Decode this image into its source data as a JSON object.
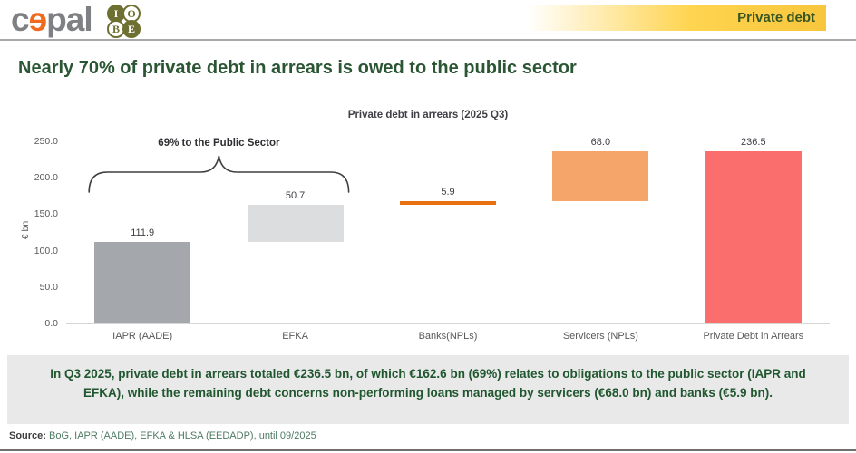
{
  "header": {
    "logo_cepal": {
      "c": "c",
      "e": "ɘ",
      "pal": "pal"
    },
    "logo_iobe": {
      "letters": [
        "I",
        "O",
        "B",
        "E"
      ]
    },
    "banner_label": "Private debt"
  },
  "title": "Nearly 70% of private debt in arrears is owed to the public sector",
  "chart_data": {
    "type": "bar",
    "subtype": "waterfall",
    "title": "Private debt in arrears (2025 Q3)",
    "xlabel": "",
    "ylabel": "€ bn",
    "ylim": [
      0,
      250
    ],
    "ytick_step": 50,
    "ytick_labels": [
      "0.0",
      "50.0",
      "100.0",
      "150.0",
      "200.0",
      "250.0"
    ],
    "grid": false,
    "legend": false,
    "categories": [
      "IAPR (AADE)",
      "EFKA",
      "Banks(NPLs)",
      "Servicers (NPLs)",
      "Private Debt in Arrears"
    ],
    "bars": [
      {
        "category": "IAPR (AADE)",
        "base": 0,
        "value": 111.9,
        "label": "111.9",
        "color": "#a4a8ac"
      },
      {
        "category": "EFKA",
        "base": 111.9,
        "value": 50.7,
        "label": "50.7",
        "color": "#dcddde"
      },
      {
        "category": "Banks(NPLs)",
        "base": 162.6,
        "value": 5.9,
        "label": "5.9",
        "color": "#e8700e"
      },
      {
        "category": "Servicers (NPLs)",
        "base": 168.5,
        "value": 68.0,
        "label": "68.0",
        "color": "#f5a569"
      },
      {
        "category": "Private Debt in Arrears",
        "base": 0,
        "value": 236.5,
        "label": "236.5",
        "color": "#fb6e6e"
      }
    ],
    "annotation": {
      "text": "69% to the Public Sector",
      "from_bar": 0,
      "to_bar": 1
    }
  },
  "note": "In Q3 2025, private debt in arrears totaled €236.5 bn, of which €162.6 bn (69%) relates to obligations to the public sector (IAPR and EFKA), while the remaining debt concerns non-performing loans managed by servicers (€68.0 bn) and banks (€5.9 bn).",
  "source": {
    "label": "Source:",
    "text": " BoG, IAPR (AADE), EFKA & HLSA (EEDADP), until 09/2025"
  }
}
